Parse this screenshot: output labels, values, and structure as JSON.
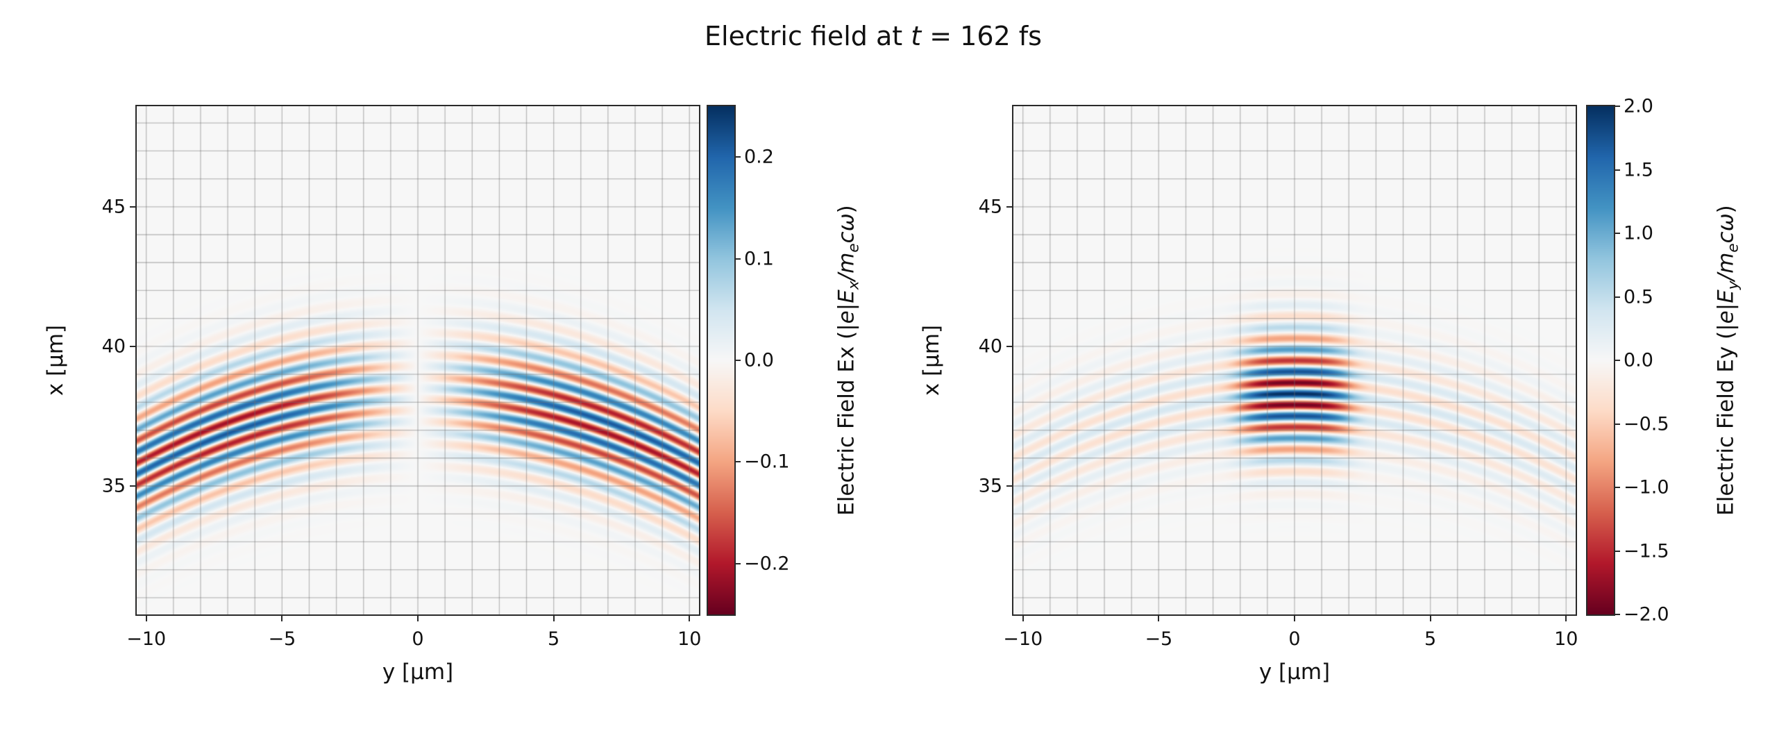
{
  "figure": {
    "title": {
      "pre": "Electric field at ",
      "var": "t",
      "post": " = 162 fs"
    },
    "background_color": "#ffffff",
    "text_color": "#111111"
  },
  "colormap": {
    "name": "RdBu",
    "stops": [
      "#67001f",
      "#b2182b",
      "#d6604d",
      "#f4a582",
      "#fddbc7",
      "#f7f7f7",
      "#d1e5f0",
      "#92c5de",
      "#4393c3",
      "#2166ac",
      "#053061"
    ]
  },
  "chart_data": [
    {
      "type": "heatmap",
      "name": "Ex",
      "xaxis": {
        "label": "y [μm]",
        "range": [
          -10.35,
          10.35
        ],
        "ticks": [
          -10,
          -5,
          0,
          5,
          10
        ],
        "tick_labels": [
          "−10",
          "−5",
          "0",
          "5",
          "10"
        ]
      },
      "yaxis": {
        "label": "x [μm]",
        "range": [
          30.4,
          48.6
        ],
        "ticks": [
          35,
          40,
          45
        ],
        "tick_labels": [
          "35",
          "40",
          "45"
        ]
      },
      "grid": {
        "spacing_um": 1,
        "color": "#707070",
        "alpha": 0.45
      },
      "colorbar": {
        "vmin": -0.25,
        "vmax": 0.25,
        "ticks": [
          0.2,
          0.1,
          0.0,
          -0.1,
          -0.2
        ],
        "tick_labels": [
          "0.2",
          "0.1",
          "0.0",
          "−0.1",
          "−0.2"
        ],
        "label": {
          "text": "Electric Field Ex (",
          "m1": "|e|E",
          "s1": "x",
          "m2": "/m",
          "s2": "e",
          "m3": "cω",
          "close": ")"
        }
      },
      "field": {
        "component": "Ex",
        "wavelength_um": 0.8,
        "focus_x_um": 38.3,
        "wavefront_curvature_um": 20,
        "pulse_sigma_um": 2.1,
        "carrier": "sin",
        "profile": "odd",
        "amplitude": 0.25,
        "profile_scale_um": 4.0,
        "profile_falloff_um": 22
      }
    },
    {
      "type": "heatmap",
      "name": "Ey",
      "xaxis": {
        "label": "y [μm]",
        "range": [
          -10.35,
          10.35
        ],
        "ticks": [
          -10,
          -5,
          0,
          5,
          10
        ],
        "tick_labels": [
          "−10",
          "−5",
          "0",
          "5",
          "10"
        ]
      },
      "yaxis": {
        "label": "x [μm]",
        "range": [
          30.4,
          48.6
        ],
        "ticks": [
          35,
          40,
          45
        ],
        "tick_labels": [
          "35",
          "40",
          "45"
        ]
      },
      "grid": {
        "spacing_um": 1,
        "color": "#707070",
        "alpha": 0.45
      },
      "colorbar": {
        "vmin": -2.0,
        "vmax": 2.0,
        "ticks": [
          2.0,
          1.5,
          1.0,
          0.5,
          0.0,
          -0.5,
          -1.0,
          -1.5,
          -2.0
        ],
        "tick_labels": [
          "2.0",
          "1.5",
          "1.0",
          "0.5",
          "0.0",
          "−0.5",
          "−1.0",
          "−1.5",
          "−2.0"
        ],
        "label": {
          "text": "Electric Field Ey (",
          "m1": "|e|E",
          "s1": "y",
          "m2": "/m",
          "s2": "e",
          "m3": "cω",
          "close": ")"
        }
      },
      "field": {
        "component": "Ey",
        "wavelength_um": 0.8,
        "focus_x_um": 38.3,
        "wavefront_curvature_um": 20,
        "pulse_sigma_um": 2.1,
        "carrier": "cos",
        "profile": "even",
        "amplitude_peak": 2.0,
        "amplitude_base": 0.36,
        "waist_um": 2.1,
        "waist_power": 4,
        "profile_falloff_um": 22
      }
    }
  ]
}
